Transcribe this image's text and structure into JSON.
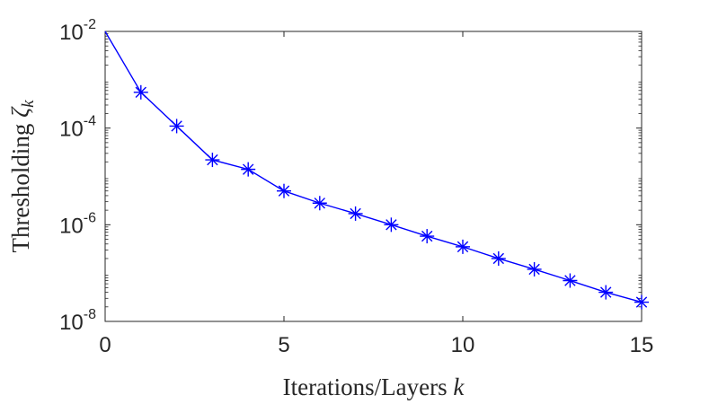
{
  "chart_data": {
    "type": "line",
    "title": "",
    "xlabel": "Iterations/Layers",
    "xlabel_var": "k",
    "ylabel": "Thresholding",
    "ylabel_var": "ζ",
    "ylabel_sub": "k",
    "xlim": [
      0,
      15
    ],
    "ylim": [
      1e-08,
      0.01
    ],
    "yscale": "log",
    "x_ticks": [
      0,
      5,
      10,
      15
    ],
    "x_tick_labels": [
      "0",
      "5",
      "10",
      "15"
    ],
    "y_ticks": [
      1e-08,
      1e-06,
      0.0001,
      0.01
    ],
    "y_tick_labels": [
      {
        "base": "10",
        "exp": "-8"
      },
      {
        "base": "10",
        "exp": "-6"
      },
      {
        "base": "10",
        "exp": "-4"
      },
      {
        "base": "10",
        "exp": "-2"
      }
    ],
    "grid": false,
    "legend": "none",
    "series": [
      {
        "color": "#0000ff",
        "marker": "asterisk",
        "x": [
          0,
          1,
          2,
          3,
          4,
          5,
          6,
          7,
          8,
          9,
          10,
          11,
          12,
          13,
          14,
          15
        ],
        "y": [
          0.01,
          0.00055,
          0.00011,
          2.2e-05,
          1.4e-05,
          5e-06,
          2.8e-06,
          1.7e-06,
          1e-06,
          5.8e-07,
          3.5e-07,
          2e-07,
          1.2e-07,
          7e-08,
          4e-08,
          2.5e-08
        ]
      }
    ]
  }
}
